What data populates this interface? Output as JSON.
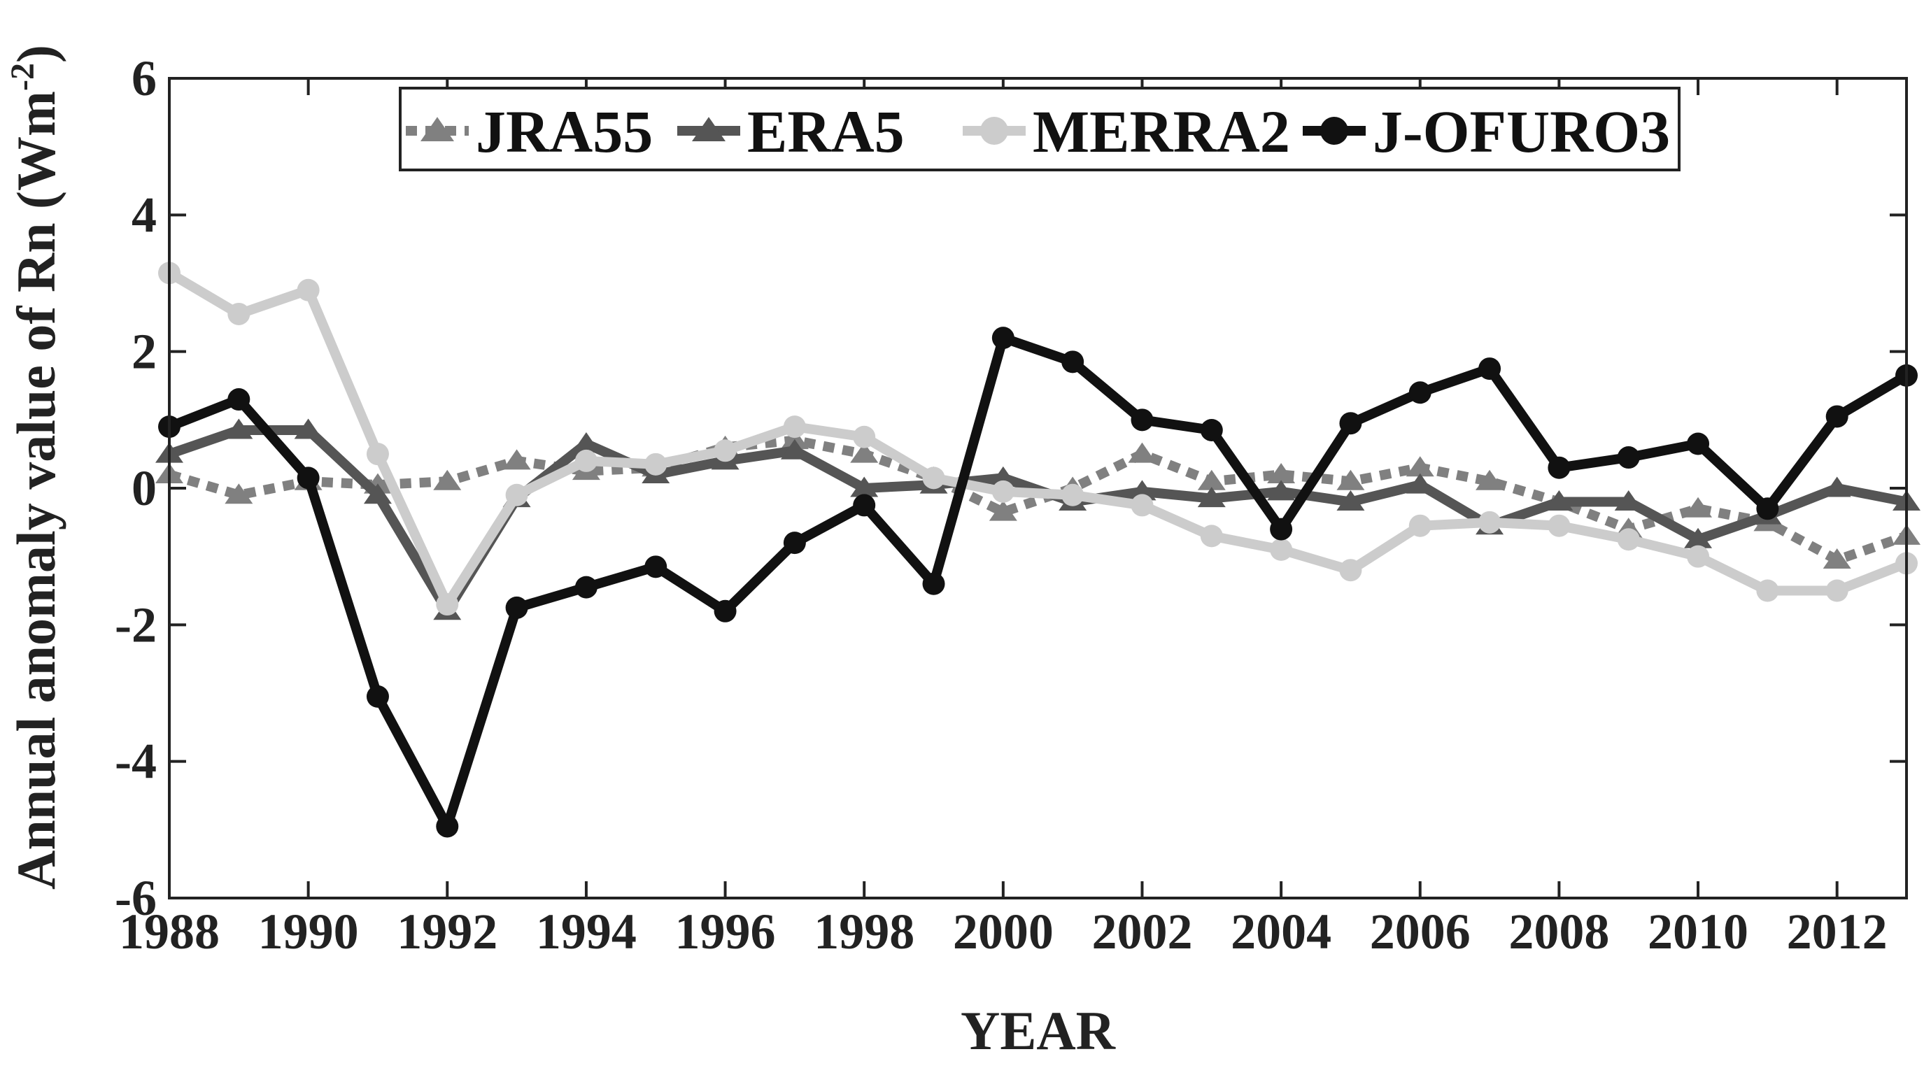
{
  "chart_data": {
    "type": "line",
    "xlabel": "YEAR",
    "ylabel_main": "Annual anomaly value of Rn (Wm",
    "ylabel_sup": "-2",
    "ylabel_close": ")",
    "xlim": [
      1988,
      2013
    ],
    "ylim": [
      -6,
      6
    ],
    "x_ticks": [
      1988,
      1990,
      1992,
      1994,
      1996,
      1998,
      2000,
      2002,
      2004,
      2006,
      2008,
      2010,
      2012
    ],
    "y_ticks": [
      -6,
      -4,
      -2,
      0,
      2,
      4,
      6
    ],
    "x_tick_labels": [
      "1988",
      "1990",
      "1992",
      "1994",
      "1996",
      "1998",
      "2000",
      "2002",
      "2004",
      "2006",
      "2008",
      "2010",
      "2012"
    ],
    "y_tick_labels": [
      "-6",
      "-4",
      "-2",
      "0",
      "2",
      "4",
      "6"
    ],
    "grid": false,
    "legend_position": "top",
    "x": [
      1988,
      1989,
      1990,
      1991,
      1992,
      1993,
      1994,
      1995,
      1996,
      1997,
      1998,
      1999,
      2000,
      2001,
      2002,
      2003,
      2004,
      2005,
      2006,
      2007,
      2008,
      2009,
      2010,
      2011,
      2012,
      2013
    ],
    "series": [
      {
        "name": "JRA55",
        "color": "#808080",
        "line_style": "dotted",
        "marker": "triangle",
        "values": [
          0.2,
          -0.1,
          0.1,
          0.05,
          0.1,
          0.4,
          0.25,
          0.3,
          0.6,
          0.7,
          0.5,
          0.15,
          -0.35,
          0.0,
          0.5,
          0.1,
          0.2,
          0.1,
          0.3,
          0.1,
          -0.2,
          -0.6,
          -0.3,
          -0.5,
          -1.05,
          -0.7
        ]
      },
      {
        "name": "ERA5",
        "color": "#555555",
        "line_style": "solid",
        "marker": "triangle",
        "values": [
          0.5,
          0.85,
          0.85,
          -0.1,
          -1.8,
          -0.15,
          0.65,
          0.2,
          0.4,
          0.55,
          0.0,
          0.05,
          0.15,
          -0.2,
          -0.05,
          -0.15,
          -0.05,
          -0.2,
          0.05,
          -0.55,
          -0.2,
          -0.2,
          -0.75,
          -0.4,
          0.0,
          -0.2
        ]
      },
      {
        "name": "MERRA2",
        "color": "#cccccc",
        "line_style": "solid",
        "marker": "circle",
        "values": [
          3.15,
          2.55,
          2.9,
          0.5,
          -1.7,
          -0.1,
          0.4,
          0.35,
          0.55,
          0.9,
          0.75,
          0.15,
          -0.05,
          -0.1,
          -0.25,
          -0.7,
          -0.9,
          -1.2,
          -0.55,
          -0.5,
          -0.55,
          -0.75,
          -1.0,
          -1.5,
          -1.5,
          -1.1
        ]
      },
      {
        "name": "J-OFURO3",
        "color": "#111111",
        "line_style": "solid",
        "marker": "circle",
        "values": [
          0.9,
          1.3,
          0.15,
          -3.05,
          -4.95,
          -1.75,
          -1.45,
          -1.15,
          -1.8,
          -0.8,
          -0.25,
          -1.4,
          2.2,
          1.85,
          1.0,
          0.85,
          -0.6,
          0.95,
          1.4,
          1.75,
          0.3,
          0.45,
          0.65,
          -0.3,
          1.05,
          1.65
        ]
      }
    ]
  }
}
